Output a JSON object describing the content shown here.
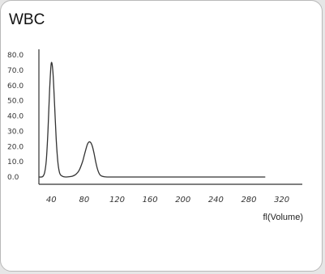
{
  "card": {
    "title": "WBC"
  },
  "chart_data": {
    "type": "line",
    "title": "",
    "xlabel": "fl(Volume)",
    "ylabel": "",
    "xlim": [
      25,
      345
    ],
    "ylim": [
      0,
      80
    ],
    "xticks": [
      "40",
      "80",
      "120",
      "160",
      "200",
      "240",
      "280",
      "320"
    ],
    "yticks": [
      "0.0",
      "10.0",
      "20.0",
      "30.0",
      "40.0",
      "50.0",
      "60.0",
      "70.0",
      "80.0"
    ],
    "grid": false,
    "line_color": "#333333",
    "series": [
      {
        "name": "",
        "x": [
          25,
          28,
          30,
          32,
          34,
          36,
          38,
          40,
          42,
          44,
          46,
          48,
          50,
          52,
          55,
          58,
          62,
          66,
          70,
          74,
          78,
          80,
          82,
          84,
          86,
          88,
          90,
          92,
          94,
          96,
          98,
          100,
          104,
          110,
          130,
          160,
          200,
          240,
          280,
          300
        ],
        "y": [
          0,
          0,
          0.5,
          3,
          11,
          30,
          57,
          74.5,
          69,
          48,
          25,
          10,
          3,
          1,
          0.2,
          0,
          0.2,
          0.6,
          1.8,
          4.5,
          10,
          14,
          18,
          21.5,
          23,
          22.5,
          20,
          15.5,
          10,
          5.5,
          2.5,
          1,
          0.2,
          0,
          0,
          0,
          0,
          0,
          0,
          0
        ]
      }
    ]
  }
}
